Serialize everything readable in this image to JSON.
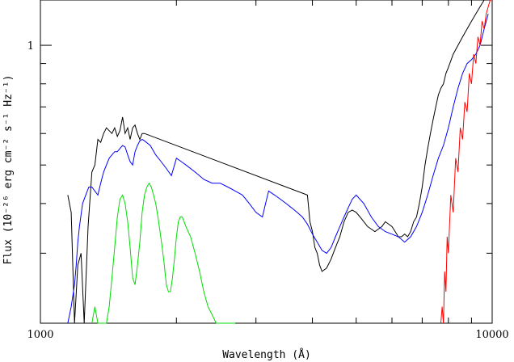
{
  "chart_data": {
    "type": "line",
    "title": "",
    "xlabel": "Wavelength (Å)",
    "ylabel": "Flux (10⁻²⁶ erg cm⁻² s⁻¹ Hz⁻¹)",
    "xscale": "log",
    "yscale": "log",
    "xlim": [
      1000,
      10000
    ],
    "ylim": [
      0.2,
      1.3
    ],
    "xticks": [
      1000,
      10000
    ],
    "xtick_labels": [
      "1000",
      "10000"
    ],
    "yticks": [
      1
    ],
    "ytick_labels": [
      "1"
    ],
    "grid": false,
    "legend": "none",
    "series": [
      {
        "color": "#000000",
        "x": [
          1150,
          1170,
          1190,
          1210,
          1230,
          1250,
          1275,
          1300,
          1320,
          1340,
          1360,
          1380,
          1400,
          1420,
          1440,
          1460,
          1480,
          1500,
          1520,
          1540,
          1560,
          1580,
          1600,
          1620,
          1640,
          1660,
          1680,
          1700,
          3900,
          3950,
          4000,
          4050,
          4100,
          4150,
          4200,
          4300,
          4400,
          4500,
          4600,
          4700,
          4800,
          4900,
          5000,
          5100,
          5200,
          5300,
          5400,
          5500,
          5600,
          5700,
          5800,
          5900,
          6000,
          6100,
          6200,
          6300,
          6400,
          6500,
          6600,
          6700,
          6800,
          6900,
          7000,
          7100,
          7200,
          7300,
          7400,
          7500,
          7600,
          7700,
          7800,
          7900,
          8000,
          8200,
          8400,
          8600,
          8800,
          9000,
          9200,
          9400,
          9600,
          9800
        ],
        "y": [
          0.42,
          0.38,
          0.2,
          0.28,
          0.3,
          0.2,
          0.35,
          0.48,
          0.5,
          0.58,
          0.57,
          0.6,
          0.62,
          0.61,
          0.6,
          0.62,
          0.59,
          0.61,
          0.66,
          0.6,
          0.62,
          0.58,
          0.62,
          0.63,
          0.6,
          0.58,
          0.6,
          0.6,
          0.42,
          0.36,
          0.34,
          0.31,
          0.3,
          0.28,
          0.27,
          0.275,
          0.29,
          0.31,
          0.33,
          0.36,
          0.38,
          0.385,
          0.38,
          0.37,
          0.36,
          0.35,
          0.345,
          0.34,
          0.345,
          0.35,
          0.36,
          0.355,
          0.35,
          0.34,
          0.33,
          0.33,
          0.335,
          0.33,
          0.34,
          0.36,
          0.37,
          0.4,
          0.44,
          0.5,
          0.55,
          0.6,
          0.65,
          0.7,
          0.75,
          0.78,
          0.8,
          0.85,
          0.88,
          0.95,
          1.0,
          1.05,
          1.1,
          1.15,
          1.2,
          1.25,
          1.3,
          1.3
        ]
      },
      {
        "color": "#0000ff",
        "x": [
          1150,
          1170,
          1190,
          1200,
          1210,
          1220,
          1240,
          1260,
          1280,
          1300,
          1320,
          1340,
          1360,
          1380,
          1400,
          1420,
          1440,
          1460,
          1480,
          1500,
          1520,
          1540,
          1560,
          1580,
          1600,
          1620,
          1640,
          1660,
          1680,
          1700,
          1750,
          1800,
          1850,
          1900,
          1950,
          2000,
          2050,
          2100,
          2200,
          2300,
          2400,
          2500,
          2600,
          2700,
          2800,
          2900,
          3000,
          3100,
          3150,
          3200,
          3300,
          3400,
          3500,
          3600,
          3700,
          3800,
          3900,
          4000,
          4100,
          4200,
          4300,
          4400,
          4500,
          4600,
          4700,
          4800,
          4900,
          5000,
          5200,
          5400,
          5600,
          5800,
          6000,
          6200,
          6400,
          6600,
          6800,
          7000,
          7200,
          7400,
          7600,
          7800,
          8000,
          8200,
          8400,
          8600,
          8800,
          9000,
          9200,
          9400,
          9600,
          9800
        ],
        "y": [
          0.2,
          0.22,
          0.25,
          0.28,
          0.32,
          0.35,
          0.4,
          0.42,
          0.44,
          0.44,
          0.43,
          0.42,
          0.45,
          0.48,
          0.5,
          0.52,
          0.53,
          0.54,
          0.54,
          0.55,
          0.56,
          0.555,
          0.53,
          0.51,
          0.5,
          0.54,
          0.56,
          0.575,
          0.58,
          0.575,
          0.56,
          0.53,
          0.51,
          0.49,
          0.47,
          0.52,
          0.51,
          0.5,
          0.48,
          0.46,
          0.45,
          0.45,
          0.44,
          0.43,
          0.42,
          0.4,
          0.38,
          0.37,
          0.4,
          0.43,
          0.42,
          0.41,
          0.4,
          0.39,
          0.38,
          0.37,
          0.355,
          0.335,
          0.32,
          0.305,
          0.3,
          0.31,
          0.33,
          0.35,
          0.37,
          0.39,
          0.41,
          0.42,
          0.4,
          0.37,
          0.35,
          0.34,
          0.335,
          0.33,
          0.32,
          0.33,
          0.35,
          0.38,
          0.42,
          0.47,
          0.52,
          0.56,
          0.62,
          0.7,
          0.78,
          0.85,
          0.9,
          0.92,
          0.95,
          1.0,
          1.1,
          1.2
        ]
      },
      {
        "color": "#00dd00",
        "x": [
          1300,
          1320,
          1340,
          1360,
          1380,
          1400,
          1420,
          1440,
          1460,
          1480,
          1500,
          1520,
          1540,
          1560,
          1580,
          1600,
          1620,
          1640,
          1660,
          1680,
          1700,
          1720,
          1740,
          1760,
          1780,
          1800,
          1820,
          1840,
          1860,
          1880,
          1900,
          1920,
          1940,
          1960,
          1980,
          2000,
          2020,
          2040,
          2060,
          2080,
          2100,
          2150,
          2200,
          2250,
          2300,
          2350,
          2400,
          2450,
          2500,
          2550,
          2600,
          2650,
          2700
        ],
        "y": [
          0.2,
          0.22,
          0.2,
          0.2,
          0.2,
          0.2,
          0.22,
          0.26,
          0.31,
          0.37,
          0.41,
          0.42,
          0.4,
          0.36,
          0.31,
          0.26,
          0.25,
          0.28,
          0.32,
          0.38,
          0.42,
          0.44,
          0.45,
          0.44,
          0.42,
          0.4,
          0.37,
          0.34,
          0.31,
          0.28,
          0.25,
          0.24,
          0.24,
          0.26,
          0.29,
          0.33,
          0.36,
          0.37,
          0.37,
          0.36,
          0.35,
          0.33,
          0.3,
          0.27,
          0.24,
          0.22,
          0.21,
          0.2,
          0.2,
          0.2,
          0.2,
          0.2,
          0.2
        ]
      },
      {
        "color": "#ff0000",
        "x": [
          7700,
          7750,
          7800,
          7850,
          7900,
          7950,
          8000,
          8100,
          8200,
          8300,
          8400,
          8500,
          8600,
          8700,
          8800,
          8900,
          9000,
          9100,
          9200,
          9300,
          9400,
          9500,
          9600,
          9700,
          9800,
          9900,
          10000
        ],
        "y": [
          0.2,
          0.22,
          0.2,
          0.27,
          0.24,
          0.33,
          0.3,
          0.42,
          0.38,
          0.52,
          0.48,
          0.62,
          0.58,
          0.72,
          0.68,
          0.85,
          0.8,
          0.95,
          0.9,
          1.05,
          1.0,
          1.15,
          1.1,
          1.2,
          1.25,
          1.3,
          1.3
        ]
      }
    ]
  }
}
